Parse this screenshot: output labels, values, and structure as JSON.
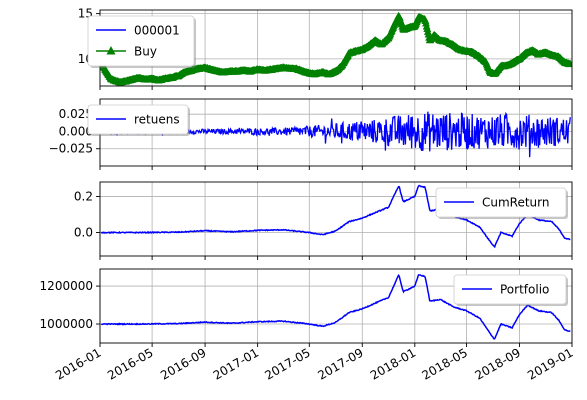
{
  "chart_data": [
    {
      "type": "line",
      "xlim": [
        "2016-01-01",
        "2019-01-01"
      ],
      "ylim": [
        7,
        15.4
      ],
      "yticks": [
        10,
        15
      ],
      "ytick_labels": [
        "10",
        "15"
      ],
      "grid": true,
      "legend_position": "top-left",
      "series": [
        {
          "name": "000001",
          "color": "#0000ff",
          "points": [
            [
              "2016-01-04",
              9.6
            ],
            [
              "2016-01-15",
              8.6
            ],
            [
              "2016-01-28",
              7.7
            ],
            [
              "2016-02-15",
              7.4
            ],
            [
              "2016-03-01",
              7.5
            ],
            [
              "2016-03-15",
              7.7
            ],
            [
              "2016-04-01",
              7.9
            ],
            [
              "2016-04-15",
              7.7
            ],
            [
              "2016-05-01",
              7.8
            ],
            [
              "2016-05-15",
              7.6
            ],
            [
              "2016-06-01",
              7.8
            ],
            [
              "2016-06-15",
              7.9
            ],
            [
              "2016-07-01",
              8.1
            ],
            [
              "2016-07-15",
              8.5
            ],
            [
              "2016-08-01",
              8.7
            ],
            [
              "2016-08-15",
              8.9
            ],
            [
              "2016-09-01",
              9.0
            ],
            [
              "2016-09-15",
              8.8
            ],
            [
              "2016-10-01",
              8.6
            ],
            [
              "2016-10-15",
              8.5
            ],
            [
              "2016-11-01",
              8.6
            ],
            [
              "2016-11-15",
              8.6
            ],
            [
              "2016-12-01",
              8.7
            ],
            [
              "2016-12-15",
              8.6
            ],
            [
              "2017-01-01",
              8.8
            ],
            [
              "2017-01-15",
              8.7
            ],
            [
              "2017-02-01",
              8.8
            ],
            [
              "2017-02-15",
              8.9
            ],
            [
              "2017-03-01",
              9.0
            ],
            [
              "2017-03-15",
              8.9
            ],
            [
              "2017-04-01",
              8.9
            ],
            [
              "2017-04-15",
              8.6
            ],
            [
              "2017-05-01",
              8.4
            ],
            [
              "2017-05-15",
              8.3
            ],
            [
              "2017-06-01",
              8.5
            ],
            [
              "2017-06-15",
              8.3
            ],
            [
              "2017-07-01",
              8.6
            ],
            [
              "2017-07-15",
              9.2
            ],
            [
              "2017-08-01",
              10.6
            ],
            [
              "2017-08-15",
              10.8
            ],
            [
              "2017-09-01",
              11.0
            ],
            [
              "2017-09-15",
              11.4
            ],
            [
              "2017-10-01",
              12.0
            ],
            [
              "2017-10-15",
              11.6
            ],
            [
              "2017-11-01",
              12.3
            ],
            [
              "2017-11-15",
              13.8
            ],
            [
              "2017-11-25",
              14.8
            ],
            [
              "2017-12-05",
              13.2
            ],
            [
              "2017-12-15",
              13.4
            ],
            [
              "2018-01-01",
              13.6
            ],
            [
              "2018-01-10",
              14.6
            ],
            [
              "2018-01-25",
              14.3
            ],
            [
              "2018-02-05",
              12.0
            ],
            [
              "2018-02-15",
              12.6
            ],
            [
              "2018-03-01",
              12.0
            ],
            [
              "2018-03-15",
              11.9
            ],
            [
              "2018-04-01",
              11.5
            ],
            [
              "2018-04-15",
              11.0
            ],
            [
              "2018-05-01",
              10.8
            ],
            [
              "2018-05-15",
              10.7
            ],
            [
              "2018-06-01",
              10.2
            ],
            [
              "2018-06-15",
              9.6
            ],
            [
              "2018-06-25",
              8.5
            ],
            [
              "2018-07-05",
              8.3
            ],
            [
              "2018-07-20",
              9.2
            ],
            [
              "2018-08-01",
              9.2
            ],
            [
              "2018-08-15",
              9.5
            ],
            [
              "2018-09-01",
              10.0
            ],
            [
              "2018-09-15",
              10.6
            ],
            [
              "2018-10-01",
              10.9
            ],
            [
              "2018-10-15",
              10.5
            ],
            [
              "2018-11-01",
              10.7
            ],
            [
              "2018-11-15",
              10.4
            ],
            [
              "2018-12-01",
              10.2
            ],
            [
              "2018-12-15",
              9.6
            ],
            [
              "2018-12-28",
              9.4
            ]
          ]
        },
        {
          "name": "Buy",
          "color": "#008000",
          "marker": "triangle",
          "same_as_series": "000001"
        }
      ]
    },
    {
      "type": "line",
      "xlim": [
        "2016-01-01",
        "2019-01-01"
      ],
      "ylim": [
        -0.05,
        0.047
      ],
      "yticks": [
        -0.025,
        0.0,
        0.025
      ],
      "ytick_labels": [
        "−0.025",
        "0.000",
        "0.025"
      ],
      "grid": true,
      "legend_position": "top-left",
      "series": [
        {
          "name": "retuens",
          "color": "#0000ff",
          "amplitude_envelope": [
            [
              "2016-01-04",
              0.004
            ],
            [
              "2016-06-01",
              0.003
            ],
            [
              "2016-12-01",
              0.004
            ],
            [
              "2017-04-01",
              0.006
            ],
            [
              "2017-08-01",
              0.014
            ],
            [
              "2017-10-01",
              0.018
            ],
            [
              "2017-12-01",
              0.025
            ],
            [
              "2018-02-01",
              0.03
            ],
            [
              "2018-06-01",
              0.025
            ],
            [
              "2018-09-01",
              0.026
            ],
            [
              "2018-12-28",
              0.02
            ]
          ]
        }
      ]
    },
    {
      "type": "line",
      "xlim": [
        "2016-01-01",
        "2019-01-01"
      ],
      "ylim": [
        -0.13,
        0.28
      ],
      "yticks": [
        0.0,
        0.2
      ],
      "ytick_labels": [
        "0.0",
        "0.2"
      ],
      "grid": true,
      "legend_position": "top-right",
      "series": [
        {
          "name": "CumReturn",
          "color": "#0000ff",
          "points": [
            [
              "2016-01-04",
              0.0
            ],
            [
              "2016-04-01",
              0.0
            ],
            [
              "2016-07-01",
              0.002
            ],
            [
              "2016-09-01",
              0.01
            ],
            [
              "2016-11-01",
              0.004
            ],
            [
              "2017-01-01",
              0.012
            ],
            [
              "2017-03-01",
              0.015
            ],
            [
              "2017-05-01",
              0.0
            ],
            [
              "2017-06-01",
              -0.012
            ],
            [
              "2017-07-01",
              0.008
            ],
            [
              "2017-08-01",
              0.06
            ],
            [
              "2017-09-01",
              0.08
            ],
            [
              "2017-10-01",
              0.11
            ],
            [
              "2017-11-01",
              0.14
            ],
            [
              "2017-11-25",
              0.26
            ],
            [
              "2017-12-05",
              0.17
            ],
            [
              "2018-01-01",
              0.2
            ],
            [
              "2018-01-10",
              0.26
            ],
            [
              "2018-01-25",
              0.25
            ],
            [
              "2018-02-05",
              0.12
            ],
            [
              "2018-03-01",
              0.13
            ],
            [
              "2018-04-01",
              0.09
            ],
            [
              "2018-05-01",
              0.07
            ],
            [
              "2018-06-01",
              0.03
            ],
            [
              "2018-06-25",
              -0.05
            ],
            [
              "2018-07-05",
              -0.08
            ],
            [
              "2018-07-20",
              0.0
            ],
            [
              "2018-08-15",
              -0.02
            ],
            [
              "2018-09-01",
              0.05
            ],
            [
              "2018-09-20",
              0.1
            ],
            [
              "2018-10-15",
              0.07
            ],
            [
              "2018-11-15",
              0.06
            ],
            [
              "2018-12-01",
              0.02
            ],
            [
              "2018-12-15",
              -0.03
            ],
            [
              "2018-12-28",
              -0.04
            ]
          ]
        }
      ]
    },
    {
      "type": "line",
      "xlim": [
        "2016-01-01",
        "2019-01-01"
      ],
      "ylim": [
        900000,
        1290000
      ],
      "yticks": [
        1000000,
        1200000
      ],
      "ytick_labels": [
        "1000000",
        "1200000"
      ],
      "grid": true,
      "legend_position": "top-right",
      "xticks": [
        "2016-01-01",
        "2016-05-01",
        "2016-09-01",
        "2017-01-01",
        "2017-05-01",
        "2017-09-01",
        "2018-01-01",
        "2018-05-01",
        "2018-09-01",
        "2019-01-01"
      ],
      "xtick_labels": [
        "2016-01",
        "2016-05",
        "2016-09",
        "2017-01",
        "2017-05",
        "2017-09",
        "2018-01",
        "2018-05",
        "2018-09",
        "2019-01"
      ],
      "series": [
        {
          "name": "Portfolio",
          "color": "#0000ff",
          "points": [
            [
              "2016-01-04",
              1000000
            ],
            [
              "2016-04-01",
              1000000
            ],
            [
              "2016-07-01",
              1002000
            ],
            [
              "2016-09-01",
              1010000
            ],
            [
              "2016-11-01",
              1004000
            ],
            [
              "2017-01-01",
              1012000
            ],
            [
              "2017-03-01",
              1015000
            ],
            [
              "2017-05-01",
              1000000
            ],
            [
              "2017-06-01",
              988000
            ],
            [
              "2017-07-01",
              1008000
            ],
            [
              "2017-08-01",
              1060000
            ],
            [
              "2017-09-01",
              1080000
            ],
            [
              "2017-10-01",
              1110000
            ],
            [
              "2017-11-01",
              1140000
            ],
            [
              "2017-11-25",
              1260000
            ],
            [
              "2017-12-05",
              1170000
            ],
            [
              "2018-01-01",
              1200000
            ],
            [
              "2018-01-10",
              1260000
            ],
            [
              "2018-01-25",
              1250000
            ],
            [
              "2018-02-05",
              1120000
            ],
            [
              "2018-03-01",
              1130000
            ],
            [
              "2018-04-01",
              1090000
            ],
            [
              "2018-05-01",
              1070000
            ],
            [
              "2018-06-01",
              1030000
            ],
            [
              "2018-06-25",
              950000
            ],
            [
              "2018-07-05",
              920000
            ],
            [
              "2018-07-20",
              1000000
            ],
            [
              "2018-08-15",
              980000
            ],
            [
              "2018-09-01",
              1050000
            ],
            [
              "2018-09-20",
              1100000
            ],
            [
              "2018-10-15",
              1070000
            ],
            [
              "2018-11-15",
              1060000
            ],
            [
              "2018-12-01",
              1020000
            ],
            [
              "2018-12-15",
              970000
            ],
            [
              "2018-12-28",
              960000
            ]
          ]
        }
      ]
    }
  ]
}
